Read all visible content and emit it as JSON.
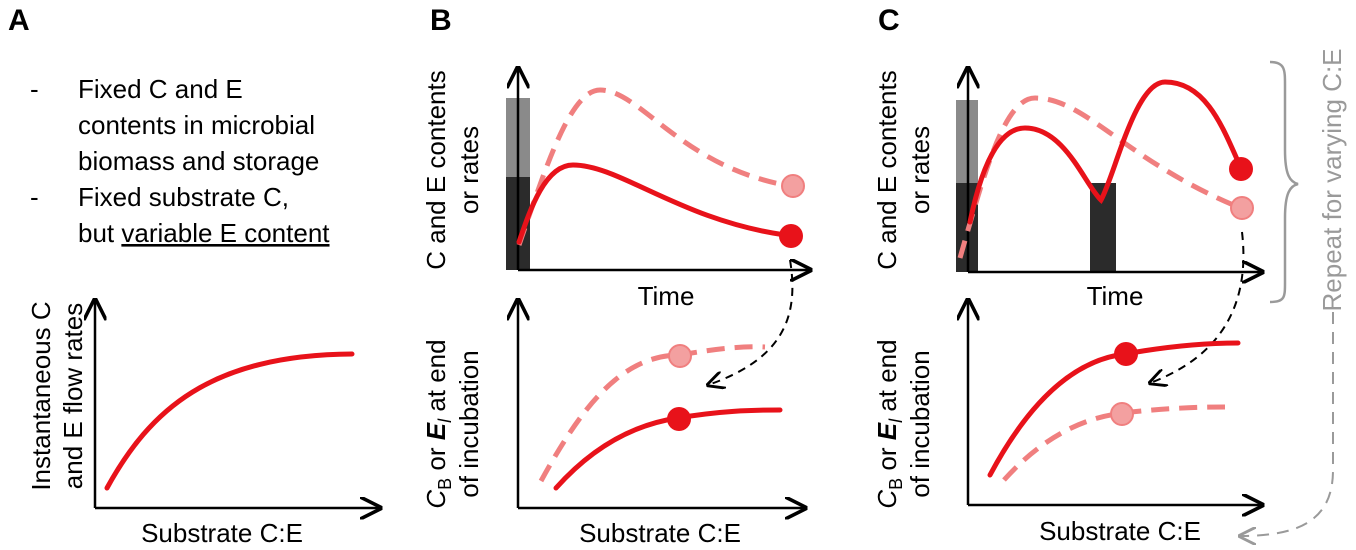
{
  "colors": {
    "red": "#e8121a",
    "light_red": "#f07f7f",
    "light_red_fill": "#f3a0a0",
    "gray_text": "#9a9a9a",
    "dark_bar": "#2b2b2b",
    "mid_bar": "#8a8a8a"
  },
  "panel_a": {
    "label": "A",
    "bullets": [
      {
        "dash": "-",
        "lines": [
          "Fixed C and E",
          "contents in microbial",
          "biomass and storage"
        ]
      },
      {
        "dash": "-",
        "line1": "Fixed substrate C,",
        "line2_prefix": "but ",
        "line2_underlined": "variable E content"
      }
    ],
    "ylabel_lines": [
      "Instantaneous C",
      "and E flow rates"
    ],
    "xlabel": "Substrate C:E"
  },
  "panel_b": {
    "label": "B",
    "top_ylabel_lines": [
      "C and E contents",
      "or rates"
    ],
    "top_xlabel": "Time",
    "bottom_ylabel_line1_parts": [
      "C",
      "B",
      " or ",
      "E",
      "l",
      " at end"
    ],
    "bottom_ylabel_line2": "of incubation",
    "bottom_xlabel": "Substrate C:E"
  },
  "panel_c": {
    "label": "C",
    "top_ylabel_lines": [
      "C and E contents",
      "or rates"
    ],
    "top_xlabel": "Time",
    "bottom_ylabel_line1_parts": [
      "C",
      "B",
      " or ",
      "E",
      "l",
      " at end"
    ],
    "bottom_ylabel_line2": "of incubation",
    "bottom_xlabel": "Substrate C:E",
    "repeat_label": "Repeat for varying C:E"
  }
}
